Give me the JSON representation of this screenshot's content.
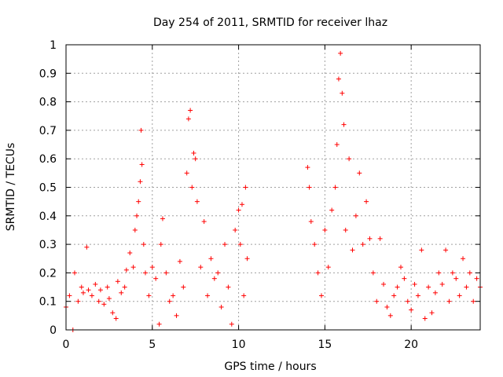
{
  "chart_data": {
    "type": "scatter",
    "title": "Day 254 of 2011, SRMTID for receiver lhaz",
    "xlabel": "GPS time / hours",
    "ylabel": "SRMTID / TECUs",
    "xlim": [
      0,
      24
    ],
    "ylim": [
      0,
      1
    ],
    "xticks": [
      0,
      5,
      10,
      15,
      20
    ],
    "xtick_labels": [
      "0",
      "5",
      "10",
      "15",
      "20"
    ],
    "yticks": [
      0,
      0.1,
      0.2,
      0.3,
      0.4,
      0.5,
      0.6,
      0.7,
      0.8,
      0.9,
      1
    ],
    "ytick_labels": [
      "0",
      "0.1",
      "0.2",
      "0.3",
      "0.4",
      "0.5",
      "0.6",
      "0.7",
      "0.8",
      "0.9",
      "1"
    ],
    "grid": true,
    "marker": "+",
    "series_color": "#ff0000",
    "data_gap_hours": [
      10.6,
      14.0
    ],
    "series": [
      {
        "name": "SRMTID",
        "x": [
          0.0,
          0.2,
          0.4,
          0.5,
          0.7,
          0.9,
          1.0,
          1.2,
          1.3,
          1.5,
          1.7,
          1.9,
          2.0,
          2.2,
          2.4,
          2.5,
          2.7,
          2.9,
          3.0,
          3.2,
          3.4,
          3.5,
          3.7,
          3.9,
          4.0,
          4.1,
          4.2,
          4.3,
          4.35,
          4.4,
          4.5,
          4.6,
          4.8,
          5.0,
          5.2,
          5.4,
          5.5,
          5.6,
          5.8,
          6.0,
          6.2,
          6.4,
          6.6,
          6.8,
          7.0,
          7.1,
          7.2,
          7.3,
          7.4,
          7.5,
          7.6,
          7.8,
          8.0,
          8.2,
          8.4,
          8.6,
          8.8,
          9.0,
          9.2,
          9.4,
          9.6,
          9.8,
          10.0,
          10.1,
          10.2,
          10.3,
          10.4,
          10.5,
          14.0,
          14.1,
          14.2,
          14.4,
          14.6,
          14.8,
          15.0,
          15.2,
          15.4,
          15.6,
          15.7,
          15.8,
          15.9,
          16.0,
          16.1,
          16.2,
          16.4,
          16.6,
          16.8,
          17.0,
          17.2,
          17.4,
          17.6,
          17.8,
          18.0,
          18.2,
          18.4,
          18.6,
          18.8,
          19.0,
          19.2,
          19.4,
          19.6,
          19.8,
          20.0,
          20.2,
          20.4,
          20.6,
          20.8,
          21.0,
          21.2,
          21.4,
          21.6,
          21.8,
          22.0,
          22.2,
          22.4,
          22.6,
          22.8,
          23.0,
          23.2,
          23.4,
          23.6,
          23.8,
          24.0
        ],
        "y": [
          0.08,
          0.12,
          0.0,
          0.2,
          0.1,
          0.15,
          0.13,
          0.29,
          0.14,
          0.12,
          0.16,
          0.1,
          0.14,
          0.09,
          0.15,
          0.11,
          0.06,
          0.04,
          0.17,
          0.13,
          0.15,
          0.21,
          0.27,
          0.22,
          0.35,
          0.4,
          0.45,
          0.52,
          0.7,
          0.58,
          0.3,
          0.2,
          0.12,
          0.22,
          0.18,
          0.02,
          0.3,
          0.39,
          0.2,
          0.1,
          0.12,
          0.05,
          0.24,
          0.15,
          0.55,
          0.74,
          0.77,
          0.5,
          0.62,
          0.6,
          0.45,
          0.22,
          0.38,
          0.12,
          0.25,
          0.18,
          0.2,
          0.08,
          0.3,
          0.15,
          0.02,
          0.35,
          0.42,
          0.3,
          0.44,
          0.12,
          0.5,
          0.25,
          0.57,
          0.5,
          0.38,
          0.3,
          0.2,
          0.12,
          0.35,
          0.22,
          0.42,
          0.5,
          0.65,
          0.88,
          0.97,
          0.83,
          0.72,
          0.35,
          0.6,
          0.28,
          0.4,
          0.55,
          0.3,
          0.45,
          0.32,
          0.2,
          0.1,
          0.32,
          0.16,
          0.08,
          0.05,
          0.12,
          0.15,
          0.22,
          0.18,
          0.1,
          0.07,
          0.16,
          0.12,
          0.28,
          0.04,
          0.15,
          0.06,
          0.13,
          0.2,
          0.16,
          0.28,
          0.1,
          0.2,
          0.18,
          0.12,
          0.25,
          0.15,
          0.2,
          0.1,
          0.18,
          0.15
        ]
      }
    ]
  }
}
